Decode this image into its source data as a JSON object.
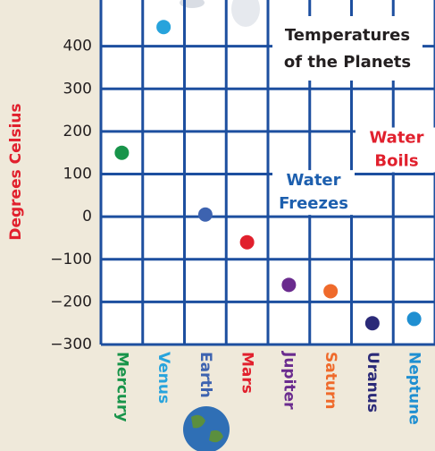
{
  "chart_data": {
    "type": "scatter",
    "title": [
      "Temperatures",
      "of the Planets"
    ],
    "y_label": "Degrees Celsius",
    "categories": [
      "Mercury",
      "Venus",
      "Earth",
      "Mars",
      "Jupiter",
      "Saturn",
      "Uranus",
      "Neptune"
    ],
    "values": [
      150,
      445,
      5,
      -60,
      -160,
      -175,
      -250,
      -240
    ],
    "colors": [
      "#18944a",
      "#27a3dc",
      "#3d63b0",
      "#e1202d",
      "#6a2b8e",
      "#ef6a2b",
      "#2b2a78",
      "#1f8fd1"
    ],
    "annotations": [
      {
        "text": [
          "Water",
          "Freezes"
        ],
        "value": 0,
        "color": "#1d5fae"
      },
      {
        "text": [
          "Water",
          "Boils"
        ],
        "value": 100,
        "color": "#e1202d"
      }
    ],
    "ylim": [
      -300,
      500
    ],
    "yticks": [
      {
        "value": -300,
        "label": "−300"
      },
      {
        "value": -200,
        "label": "−200"
      },
      {
        "value": -100,
        "label": "−100"
      },
      0,
      100,
      200,
      300,
      400
    ],
    "grid": true
  }
}
